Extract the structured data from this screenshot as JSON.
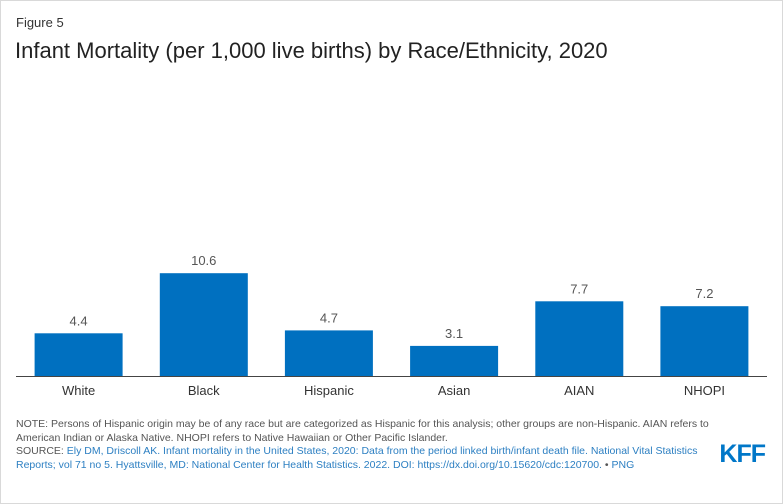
{
  "figure_label": "Figure 5",
  "title": "Infant Mortality (per 1,000 live births) by Race/Ethnicity, 2020",
  "chart_data": {
    "type": "bar",
    "title": "Infant Mortality (per 1,000 live births) by Race/Ethnicity, 2020",
    "categories": [
      "White",
      "Black",
      "Hispanic",
      "Asian",
      "AIAN",
      "NHOPI"
    ],
    "values": [
      4.4,
      10.6,
      4.7,
      3.1,
      7.7,
      7.2
    ],
    "value_labels": [
      "4.4",
      "10.6",
      "4.7",
      "3.1",
      "7.7",
      "7.2"
    ],
    "xlabel": "",
    "ylabel": "",
    "ylim": [
      0,
      12.5
    ],
    "grid": false,
    "bar_color": "#0070c0"
  },
  "notes": {
    "note": "NOTE: Persons of Hispanic origin may be of any race but are categorized as Hispanic for this analysis; other groups are non-Hispanic. AIAN refers to American Indian or Alaska Native. NHOPI refers to Native Hawaiian or Other Pacific Islander.",
    "source_prefix": "SOURCE: ",
    "source_link": "Ely DM, Driscoll AK. Infant mortality in the United States, 2020: Data from the period linked birth/infant death file. National Vital Statistics Reports; vol 71 no 5. Hyattsville, MD: National Center for Health Statistics. 2022. DOI: https://dx.doi.org/10.15620/cdc:120700.",
    "source_sep": " • ",
    "png_label": "PNG"
  },
  "logo_text": "KFF",
  "colors": {
    "bar": "#0070c0",
    "logo": "#0077c8",
    "link": "#2c7fc2"
  }
}
